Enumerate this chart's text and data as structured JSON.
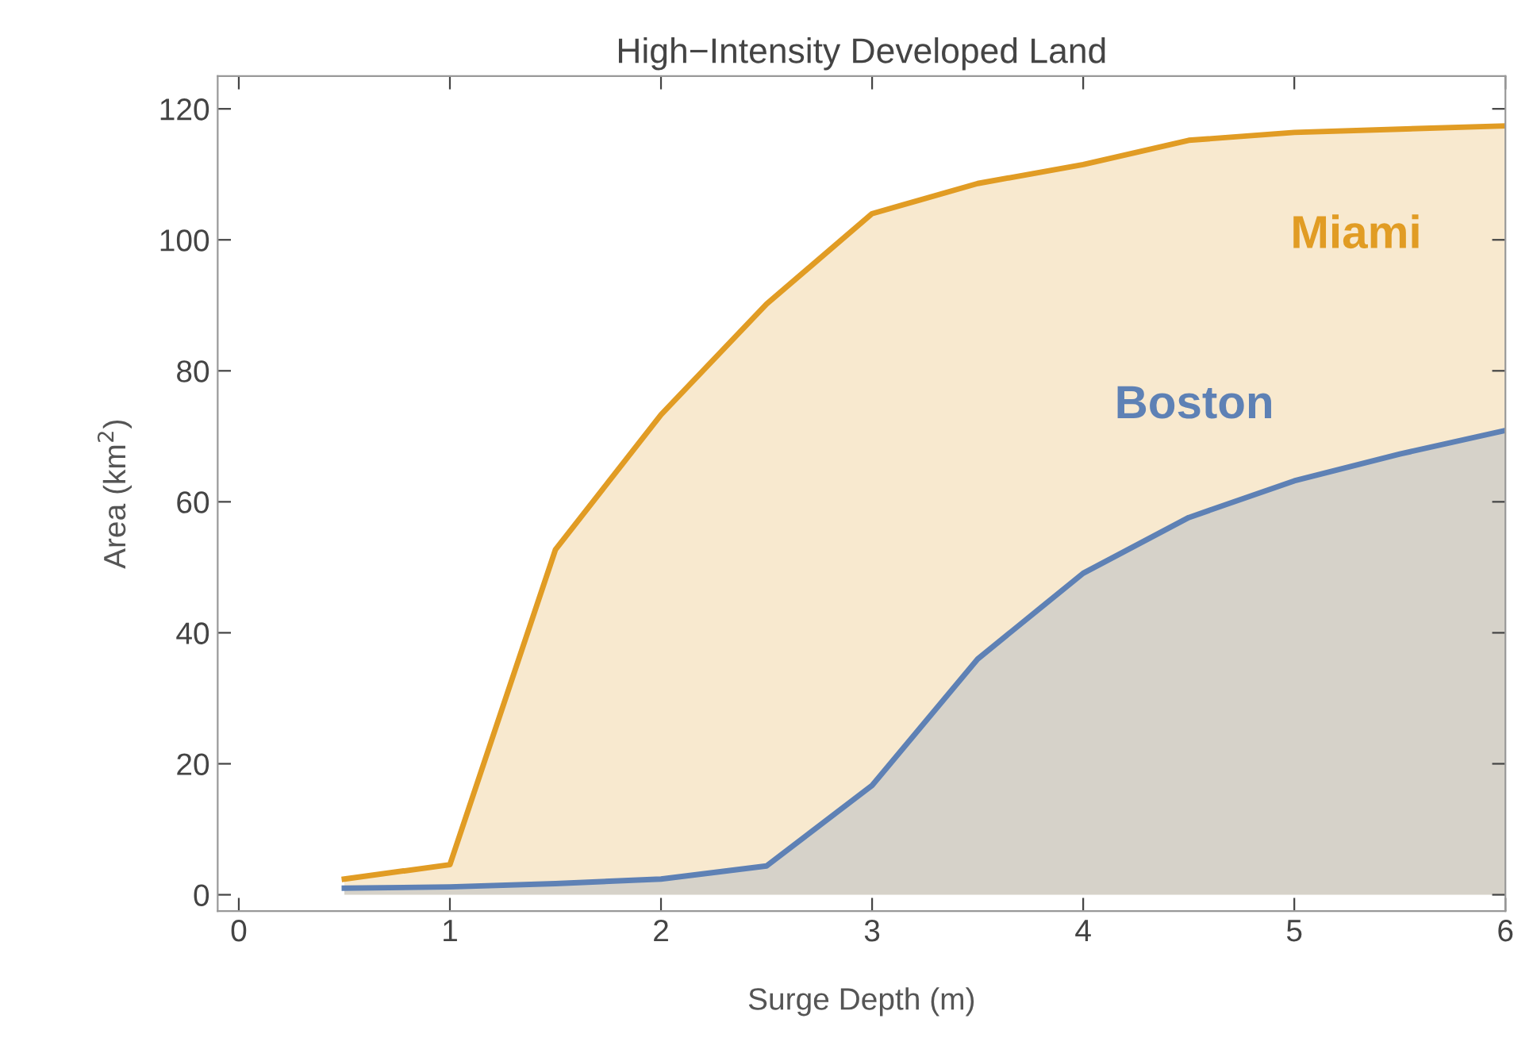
{
  "chart_data": {
    "type": "area",
    "title": "High−Intensity Developed Land",
    "xlabel": "Surge Depth (m)",
    "ylabel": "Area (km$^{2}$)",
    "xlim": [
      -0.1,
      6
    ],
    "ylim": [
      -2.5,
      125
    ],
    "xticks": [
      0,
      1,
      2,
      3,
      4,
      5,
      6
    ],
    "yticks": [
      0,
      20,
      40,
      60,
      80,
      100,
      120
    ],
    "grid": false,
    "legend": false,
    "series": [
      {
        "name": "Miami",
        "color": "#e19c24",
        "x": [
          0.5,
          1,
          1.5,
          2,
          2.5,
          3,
          3.5,
          4,
          4.5,
          5,
          5.5,
          6
        ],
        "values": [
          2.4,
          4.6,
          52.7,
          73.3,
          90.2,
          104,
          108.6,
          111.5,
          115.2,
          116.4,
          116.9,
          117.4
        ]
      },
      {
        "name": "Boston",
        "color": "#5e81b5",
        "x": [
          0.5,
          1,
          1.5,
          2,
          2.5,
          3,
          3.5,
          4,
          4.5,
          5,
          5.5,
          6
        ],
        "values": [
          1,
          1.2,
          1.7,
          2.4,
          4.4,
          16.7,
          36,
          49.1,
          57.6,
          63.2,
          67.3,
          70.9
        ]
      }
    ]
  }
}
